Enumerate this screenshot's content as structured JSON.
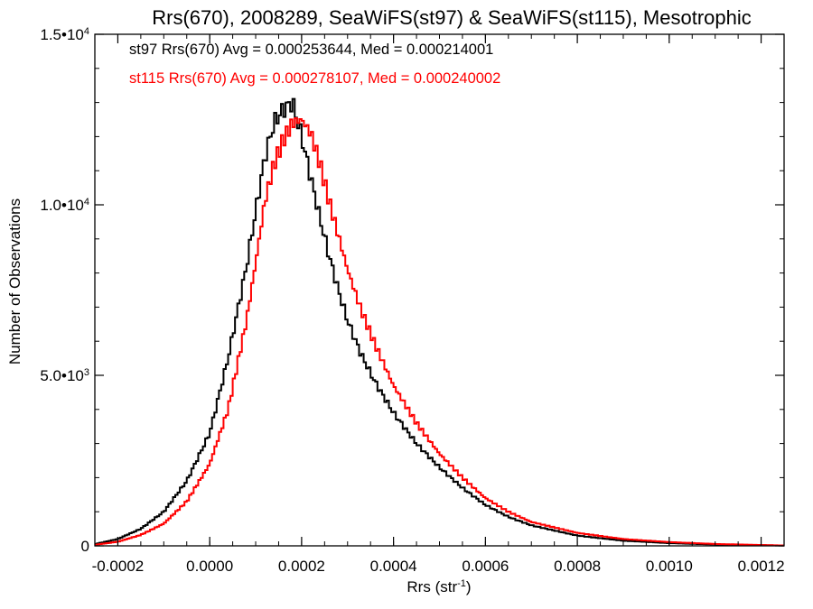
{
  "chart_data": {
    "type": "line",
    "style": "histogram-step",
    "title": "Rrs(670), 2008289, SeaWiFS(st97) & SeaWiFS(st115), Mesotrophic",
    "xlabel_main": "Rrs (str",
    "xlabel_sup": "-1",
    "xlabel_close": ")",
    "ylabel": "Number of Observations",
    "xlim": [
      -0.00025,
      0.00125
    ],
    "ylim": [
      0,
      15000
    ],
    "x_ticks": [
      {
        "value": -0.0002,
        "label": "-0.0002"
      },
      {
        "value": 0.0,
        "label": "0.0000"
      },
      {
        "value": 0.0002,
        "label": "0.0002"
      },
      {
        "value": 0.0004,
        "label": "0.0004"
      },
      {
        "value": 0.0006,
        "label": "0.0006"
      },
      {
        "value": 0.0008,
        "label": "0.0008"
      },
      {
        "value": 0.001,
        "label": "0.0010"
      },
      {
        "value": 0.0012,
        "label": "0.0012"
      }
    ],
    "y_ticks": [
      {
        "value": 0,
        "label": "0",
        "sup": ""
      },
      {
        "value": 5000,
        "label": "5.0•10",
        "sup": "3"
      },
      {
        "value": 10000,
        "label": "1.0•10",
        "sup": "4"
      },
      {
        "value": 15000,
        "label": "1.5•10",
        "sup": "4"
      }
    ],
    "grid": false,
    "legend_position": "top-left",
    "legend": [
      {
        "text": "st97 Rrs(670) Avg = 0.000253644, Med = 0.000214001",
        "color": "#000000"
      },
      {
        "text": "st115 Rrs(670) Avg = 0.000278107, Med = 0.000240002",
        "color": "#ff0000"
      }
    ],
    "series": [
      {
        "color": "#000000",
        "x": [
          -0.00025,
          -0.0002,
          -0.00015,
          -0.0001,
          -5e-05,
          0.0,
          4e-05,
          8e-05,
          0.0001,
          0.00012,
          0.00014,
          0.00016,
          0.00018,
          0.0002,
          0.00022,
          0.00024,
          0.00026,
          0.00028,
          0.0003,
          0.00033,
          0.00036,
          0.0004,
          0.00045,
          0.0005,
          0.00055,
          0.0006,
          0.00065,
          0.0007,
          0.0008,
          0.0009,
          0.001,
          0.0011,
          0.0012,
          0.00125
        ],
        "y": [
          50,
          200,
          500,
          1000,
          1900,
          3300,
          5500,
          8200,
          9800,
          11400,
          12400,
          12800,
          13000,
          12000,
          10800,
          9600,
          8500,
          7500,
          6600,
          5600,
          4800,
          3900,
          3000,
          2300,
          1700,
          1200,
          850,
          600,
          300,
          150,
          80,
          40,
          20,
          10
        ]
      },
      {
        "color": "#ff0000",
        "x": [
          -0.00025,
          -0.0002,
          -0.00015,
          -0.0001,
          -5e-05,
          0.0,
          4e-05,
          8e-05,
          0.0001,
          0.00012,
          0.00014,
          0.00016,
          0.00018,
          0.0002,
          0.00022,
          0.00024,
          0.00026,
          0.00028,
          0.0003,
          0.00033,
          0.00036,
          0.0004,
          0.00045,
          0.0005,
          0.00055,
          0.0006,
          0.00065,
          0.0007,
          0.0008,
          0.0009,
          0.001,
          0.0011,
          0.0012,
          0.00125
        ],
        "y": [
          30,
          120,
          320,
          650,
          1300,
          2400,
          4000,
          6600,
          8300,
          10100,
          11200,
          11900,
          12400,
          12500,
          12100,
          11200,
          10100,
          9100,
          8100,
          6900,
          5900,
          4700,
          3600,
          2700,
          2000,
          1400,
          1000,
          700,
          380,
          200,
          110,
          55,
          25,
          10
        ]
      }
    ]
  }
}
